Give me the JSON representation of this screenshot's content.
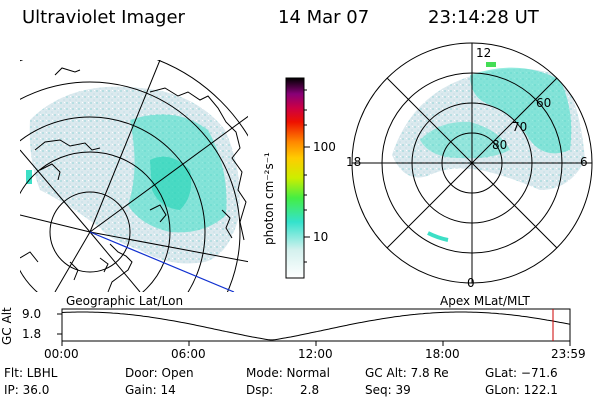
{
  "header": {
    "instrument": "Ultraviolet Imager",
    "date": "14 Mar 07",
    "time": "23:14:28 UT"
  },
  "colorbar": {
    "unit_label": "photon cm⁻²s⁻¹",
    "ticks": [
      "100",
      "10"
    ]
  },
  "left_panel": {
    "caption": "Geographic Lat/Lon"
  },
  "right_panel": {
    "caption": "Apex MLat/MLT",
    "mlt_labels": [
      "12",
      "18",
      "6",
      "0"
    ],
    "mlat_labels": [
      "60",
      "70",
      "80"
    ]
  },
  "altitude_plot": {
    "ylabel": "GC Alt",
    "y_ticks": [
      "9.0",
      "1.8"
    ],
    "x_ticks": [
      "00:00",
      "06:00",
      "12:00",
      "18:00",
      "23:59"
    ],
    "marker_color": "#cc0000"
  },
  "status": {
    "flt": "Flt: LBHL",
    "ip": "IP: 36.0",
    "door": "Door: Open",
    "gain": "Gain: 14",
    "mode": "Mode: Normal",
    "dsp_label": "Dsp:",
    "dsp_value": "2.8",
    "gc_alt": "GC Alt: 7.8 Re",
    "seq": "Seq: 39",
    "glat": "GLat: −71.6",
    "glon": "GLon: 122.1"
  }
}
